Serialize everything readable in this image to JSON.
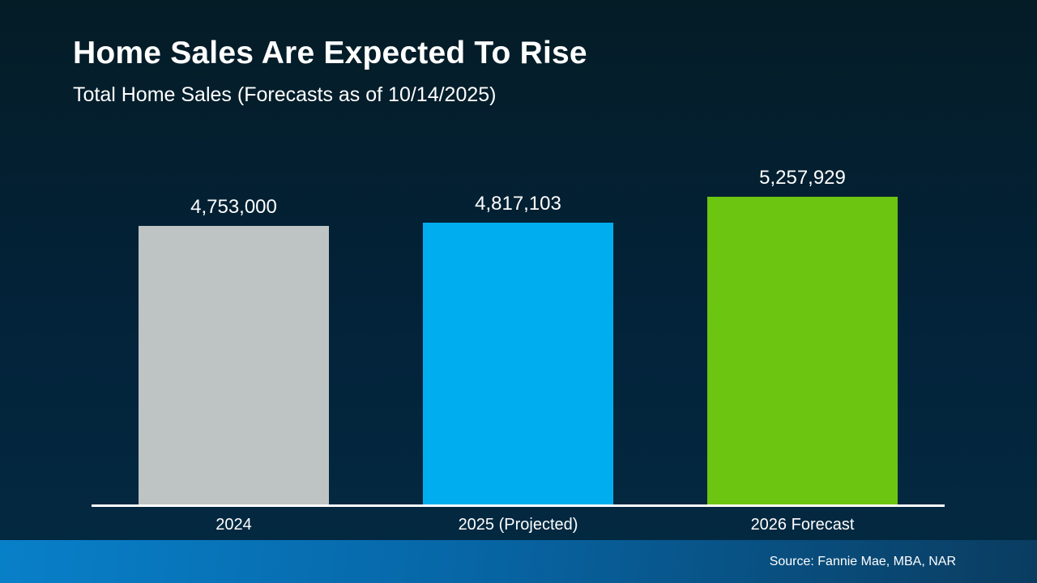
{
  "header": {
    "title": "Home Sales Are Expected To Rise",
    "subtitle": "Total Home Sales (Forecasts as of 10/14/2025)"
  },
  "chart_data": {
    "type": "bar",
    "title": "Home Sales Are Expected To Rise",
    "subtitle": "Total Home Sales (Forecasts as of 10/14/2025)",
    "categories": [
      "2024",
      "2025 (Projected)",
      "2026 Forecast"
    ],
    "values": [
      4753000,
      4817103,
      5257929
    ],
    "value_labels": [
      "4,753,000",
      "4,817,103",
      "5,257,929"
    ],
    "bar_colors": [
      "#BEC3C4",
      "#00AEEF",
      "#6CC511"
    ],
    "xlabel": "",
    "ylabel": "",
    "ylim": [
      0,
      5257929
    ],
    "grid": false,
    "legend": false,
    "baseline": "zero"
  },
  "footer": {
    "source": "Source: Fannie Mae, MBA, NAR"
  },
  "colors": {
    "background_top": "#041C26",
    "background_mid": "#03233A",
    "background_bottom": "#032A42",
    "axis_line": "#FFFFFF",
    "footer_gradient_left": "#0880C9",
    "footer_gradient_mid": "#0766A6",
    "footer_gradient_right": "#0A3C60",
    "text": "#FFFFFF"
  }
}
